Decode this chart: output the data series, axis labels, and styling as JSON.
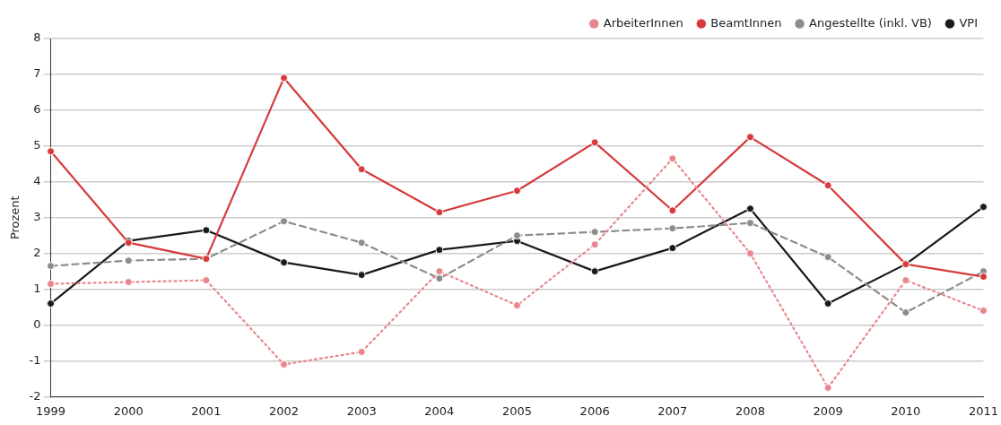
{
  "chart_data": {
    "type": "line",
    "ylabel": "Prozent",
    "categories": [
      "1999",
      "2000",
      "2001",
      "2002",
      "2003",
      "2004",
      "2005",
      "2006",
      "2007",
      "2008",
      "2009",
      "2010",
      "2011"
    ],
    "series": [
      {
        "name": "ArbeiterInnen",
        "color": "#e8868c",
        "line_style": "dotted",
        "values": [
          1.15,
          1.2,
          1.25,
          -1.1,
          -0.75,
          1.5,
          0.55,
          2.25,
          4.65,
          2.0,
          -1.75,
          1.25,
          0.4
        ]
      },
      {
        "name": "BeamtInnen",
        "color": "#d63a3c",
        "line_style": "solid",
        "values": [
          4.85,
          2.3,
          1.85,
          6.9,
          4.35,
          3.15,
          3.75,
          5.1,
          3.2,
          5.25,
          3.9,
          1.7,
          1.35
        ]
      },
      {
        "name": "Angestellte (inkl. VB)",
        "color": "#8c8c8c",
        "line_style": "dashed",
        "values": [
          1.65,
          1.8,
          1.85,
          2.9,
          2.3,
          1.3,
          2.5,
          2.6,
          2.7,
          2.85,
          1.9,
          0.35,
          1.5
        ]
      },
      {
        "name": "VPI",
        "color": "#1a1a1a",
        "line_style": "solid",
        "values": [
          0.6,
          2.35,
          2.65,
          1.75,
          1.4,
          2.1,
          2.35,
          1.5,
          2.15,
          3.25,
          0.6,
          1.7,
          3.3
        ]
      }
    ],
    "ylim": [
      -2,
      8
    ],
    "yticks": [
      -2,
      -1,
      0,
      1,
      2,
      3,
      4,
      5,
      6,
      7,
      8
    ],
    "grid": "y",
    "legend": "top right",
    "marker": "circle"
  }
}
